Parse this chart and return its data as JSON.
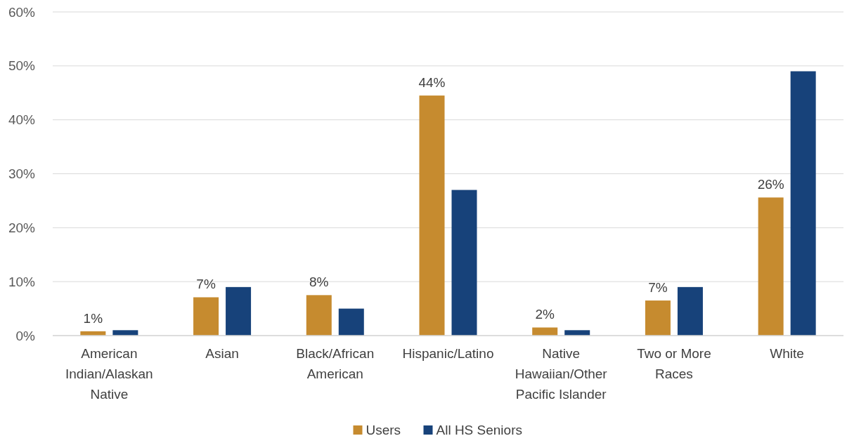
{
  "chart_data": {
    "type": "bar",
    "categories": [
      "American Indian/Alaskan Native",
      "Asian",
      "Black/African American",
      "Hispanic/Latino",
      "Native Hawaiian/Other Pacific Islander",
      "Two or More Races",
      "White"
    ],
    "series": [
      {
        "name": "Users",
        "color": "#c68b2f",
        "values": [
          0.8,
          7.1,
          7.5,
          44.5,
          1.5,
          6.5,
          25.6
        ],
        "value_labels": [
          "1%",
          "7%",
          "8%",
          "44%",
          "2%",
          "7%",
          "26%"
        ]
      },
      {
        "name": "All HS Seniors",
        "color": "#17427a",
        "values": [
          1,
          9,
          5,
          27,
          1,
          9,
          49
        ]
      }
    ],
    "ylim": [
      0,
      60
    ],
    "yticks": [
      {
        "value": 0,
        "label": "0%"
      },
      {
        "value": 10,
        "label": "10%"
      },
      {
        "value": 20,
        "label": "20%"
      },
      {
        "value": 30,
        "label": "30%"
      },
      {
        "value": 40,
        "label": "40%"
      },
      {
        "value": 50,
        "label": "50%"
      },
      {
        "value": 60,
        "label": "60%"
      }
    ],
    "grid": "y",
    "legend": "bottom"
  }
}
